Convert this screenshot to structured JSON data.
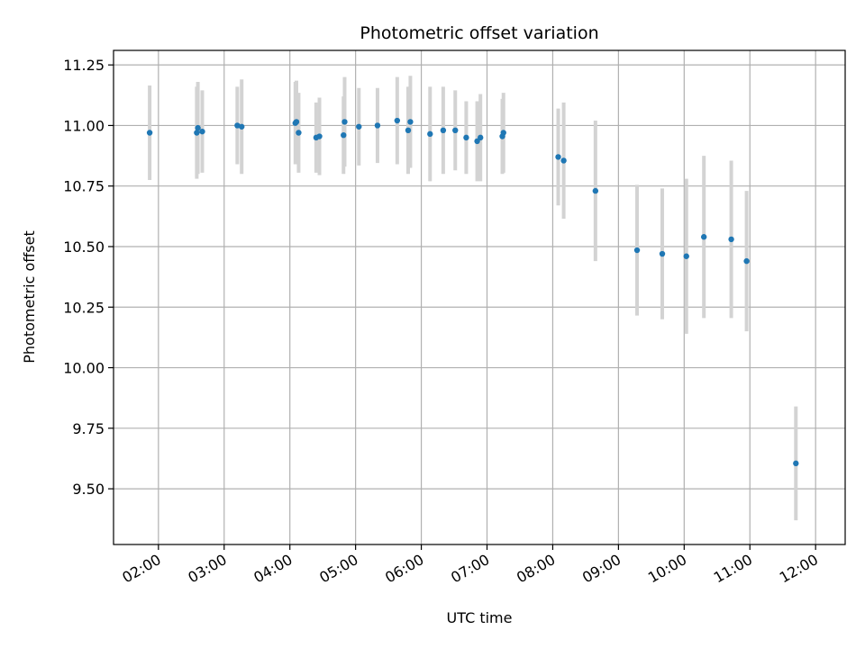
{
  "chart_data": {
    "type": "scatter",
    "title": "Photometric offset variation",
    "xlabel": "UTC time",
    "ylabel": "Photometric offset",
    "x_ticks": [
      "02:00",
      "03:00",
      "04:00",
      "05:00",
      "06:00",
      "07:00",
      "08:00",
      "09:00",
      "10:00",
      "11:00",
      "12:00"
    ],
    "y_ticks": [
      "9.50",
      "9.75",
      "10.00",
      "10.25",
      "10.50",
      "10.75",
      "11.00",
      "11.25"
    ],
    "xlim": [
      "01:19",
      "12:27"
    ],
    "ylim": [
      9.27,
      11.31
    ],
    "grid": true,
    "colors": {
      "points": "#1f77b4",
      "error_bars": "#d3d3d3",
      "grid": "#b0b0b0"
    },
    "series": [
      {
        "points": [
          {
            "x": "01:52",
            "y": 10.97,
            "err": 0.195
          },
          {
            "x": "02:35",
            "y": 10.97,
            "err": 0.19
          },
          {
            "x": "02:36",
            "y": 10.99,
            "err": 0.19
          },
          {
            "x": "02:40",
            "y": 10.975,
            "err": 0.17
          },
          {
            "x": "03:12",
            "y": 11.0,
            "err": 0.16
          },
          {
            "x": "03:16",
            "y": 10.995,
            "err": 0.195
          },
          {
            "x": "04:05",
            "y": 11.01,
            "err": 0.17
          },
          {
            "x": "04:06",
            "y": 11.015,
            "err": 0.17
          },
          {
            "x": "04:08",
            "y": 10.97,
            "err": 0.165
          },
          {
            "x": "04:24",
            "y": 10.95,
            "err": 0.145
          },
          {
            "x": "04:27",
            "y": 10.955,
            "err": 0.16
          },
          {
            "x": "04:49",
            "y": 10.96,
            "err": 0.16
          },
          {
            "x": "04:50",
            "y": 11.015,
            "err": 0.185
          },
          {
            "x": "05:03",
            "y": 10.995,
            "err": 0.16
          },
          {
            "x": "05:20",
            "y": 11.0,
            "err": 0.155
          },
          {
            "x": "05:38",
            "y": 11.02,
            "err": 0.18
          },
          {
            "x": "05:48",
            "y": 10.98,
            "err": 0.18
          },
          {
            "x": "05:50",
            "y": 11.015,
            "err": 0.19
          },
          {
            "x": "06:08",
            "y": 10.965,
            "err": 0.195
          },
          {
            "x": "06:20",
            "y": 10.98,
            "err": 0.18
          },
          {
            "x": "06:31",
            "y": 10.98,
            "err": 0.165
          },
          {
            "x": "06:41",
            "y": 10.95,
            "err": 0.15
          },
          {
            "x": "06:51",
            "y": 10.935,
            "err": 0.165
          },
          {
            "x": "06:54",
            "y": 10.95,
            "err": 0.18
          },
          {
            "x": "07:14",
            "y": 10.955,
            "err": 0.155
          },
          {
            "x": "07:15",
            "y": 10.97,
            "err": 0.165
          },
          {
            "x": "08:05",
            "y": 10.87,
            "err": 0.2
          },
          {
            "x": "08:10",
            "y": 10.855,
            "err": 0.24
          },
          {
            "x": "08:39",
            "y": 10.73,
            "err": 0.29
          },
          {
            "x": "09:17",
            "y": 10.485,
            "err": 0.27
          },
          {
            "x": "09:40",
            "y": 10.47,
            "err": 0.27
          },
          {
            "x": "10:02",
            "y": 10.46,
            "err": 0.32
          },
          {
            "x": "10:18",
            "y": 10.54,
            "err": 0.335
          },
          {
            "x": "10:43",
            "y": 10.53,
            "err": 0.325
          },
          {
            "x": "10:57",
            "y": 10.44,
            "err": 0.29
          },
          {
            "x": "11:42",
            "y": 9.605,
            "err": 0.235
          }
        ]
      }
    ]
  }
}
